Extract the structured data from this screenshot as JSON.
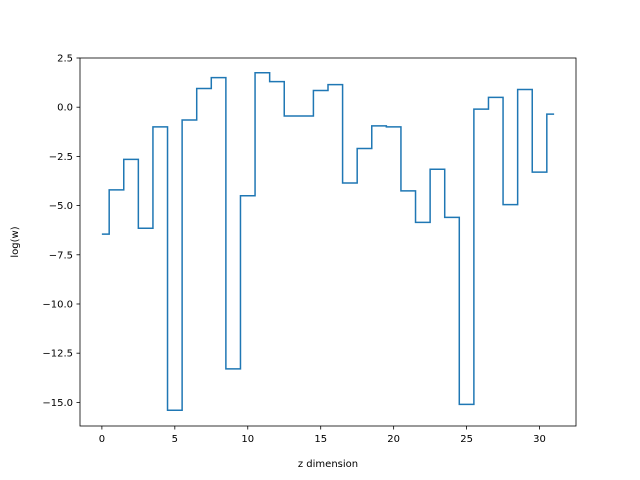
{
  "chart_data": {
    "type": "line",
    "step_style": "mid",
    "title": "",
    "xlabel": "z dimension",
    "ylabel": "log(w)",
    "xlim": [
      -1.5,
      32.5
    ],
    "ylim": [
      -16.2,
      2.5
    ],
    "x_ticks": [
      0,
      5,
      10,
      15,
      20,
      25,
      30
    ],
    "y_ticks": [
      2.5,
      0.0,
      -2.5,
      -5.0,
      -7.5,
      -10.0,
      -12.5,
      -15.0
    ],
    "x_tick_labels": [
      "0",
      "5",
      "10",
      "15",
      "20",
      "25",
      "30"
    ],
    "y_tick_labels": [
      "2.5",
      "0.0",
      "−2.5",
      "−5.0",
      "−7.5",
      "−10.0",
      "−12.5",
      "−15.0"
    ],
    "grid": false,
    "legend": "none",
    "colors": {
      "line": "#1f77b4",
      "axes": "#000000",
      "background": "#ffffff"
    },
    "series": [
      {
        "x": [
          0,
          1,
          2,
          3,
          4,
          5,
          6,
          7,
          8,
          9,
          10,
          11,
          12,
          13,
          14,
          15,
          16,
          17,
          18,
          19,
          20,
          21,
          22,
          23,
          24,
          25,
          26,
          27,
          28,
          29,
          30,
          31
        ],
        "values": [
          -6.45,
          -4.2,
          -2.65,
          -6.15,
          -1.0,
          -15.4,
          -0.65,
          0.95,
          1.5,
          -13.3,
          -4.5,
          1.75,
          1.3,
          -0.45,
          -0.45,
          0.85,
          1.15,
          -3.85,
          -2.1,
          -0.95,
          -1.0,
          -4.25,
          -5.85,
          -3.15,
          -5.6,
          -15.1,
          -0.1,
          0.5,
          -4.95,
          0.9,
          -3.3,
          -0.35
        ]
      }
    ]
  }
}
